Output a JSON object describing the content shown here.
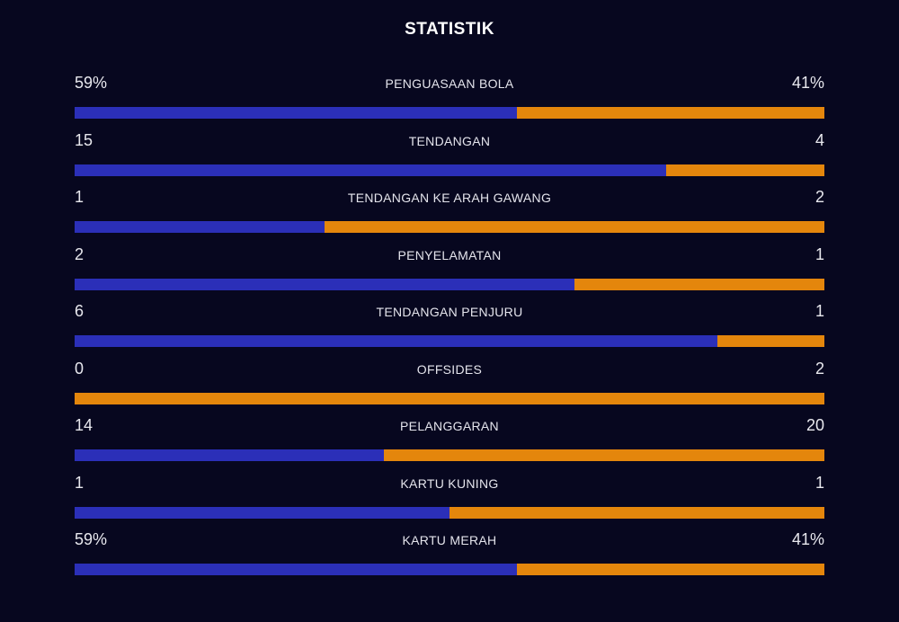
{
  "title": "STATISTIK",
  "colors": {
    "background": "#07071f",
    "home_bar": "#2b2fb8",
    "away_bar": "#e4860c"
  },
  "stats": [
    {
      "label": "PENGUASAAN BOLA",
      "left": "59%",
      "right": "41%",
      "left_share": 0.59
    },
    {
      "label": "TENDANGAN",
      "left": "15",
      "right": "4",
      "left_share": 0.789
    },
    {
      "label": "TENDANGAN KE ARAH GAWANG",
      "left": "1",
      "right": "2",
      "left_share": 0.333
    },
    {
      "label": "PENYELAMATAN",
      "left": "2",
      "right": "1",
      "left_share": 0.667
    },
    {
      "label": "TENDANGAN PENJURU",
      "left": "6",
      "right": "1",
      "left_share": 0.857
    },
    {
      "label": "OFFSIDES",
      "left": "0",
      "right": "2",
      "left_share": 0.0
    },
    {
      "label": "PELANGGARAN",
      "left": "14",
      "right": "20",
      "left_share": 0.412
    },
    {
      "label": "KARTU KUNING",
      "left": "1",
      "right": "1",
      "left_share": 0.5
    },
    {
      "label": "KARTU MERAH",
      "left": "59%",
      "right": "41%",
      "left_share": 0.59
    }
  ]
}
